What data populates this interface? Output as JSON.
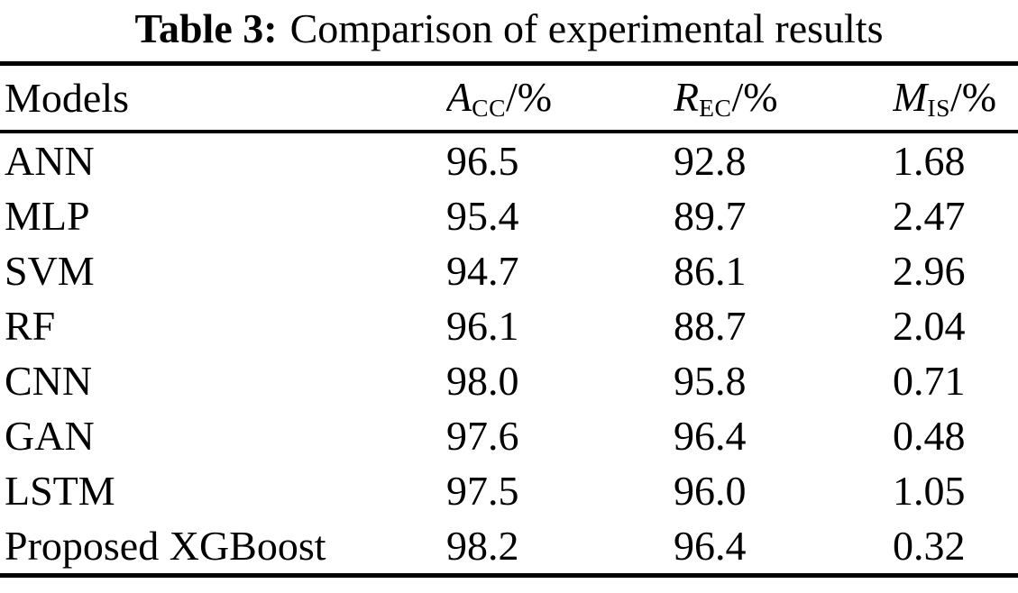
{
  "colors": {
    "background": "#ffffff",
    "text": "#000000",
    "rule": "#000000"
  },
  "caption": {
    "label": "Table 3:",
    "text": "Comparison of experimental results"
  },
  "table": {
    "columns": [
      {
        "name": "Models"
      },
      {
        "letter": "A",
        "sub": "CC",
        "suffix": "/%"
      },
      {
        "letter": "R",
        "sub": "EC",
        "suffix": "/%"
      },
      {
        "letter": "M",
        "sub": "IS",
        "suffix": "/%"
      }
    ],
    "rows": [
      {
        "model": "ANN",
        "acc": "96.5",
        "rec": "92.8",
        "mis": "1.68"
      },
      {
        "model": "MLP",
        "acc": "95.4",
        "rec": "89.7",
        "mis": "2.47"
      },
      {
        "model": "SVM",
        "acc": "94.7",
        "rec": "86.1",
        "mis": "2.96"
      },
      {
        "model": "RF",
        "acc": "96.1",
        "rec": "88.7",
        "mis": "2.04"
      },
      {
        "model": "CNN",
        "acc": "98.0",
        "rec": "95.8",
        "mis": "0.71"
      },
      {
        "model": "GAN",
        "acc": "97.6",
        "rec": "96.4",
        "mis": "0.48"
      },
      {
        "model": "LSTM",
        "acc": "97.5",
        "rec": "96.0",
        "mis": "1.05"
      },
      {
        "model": "Proposed XGBoost",
        "acc": "98.2",
        "rec": "96.4",
        "mis": "0.32"
      }
    ]
  }
}
